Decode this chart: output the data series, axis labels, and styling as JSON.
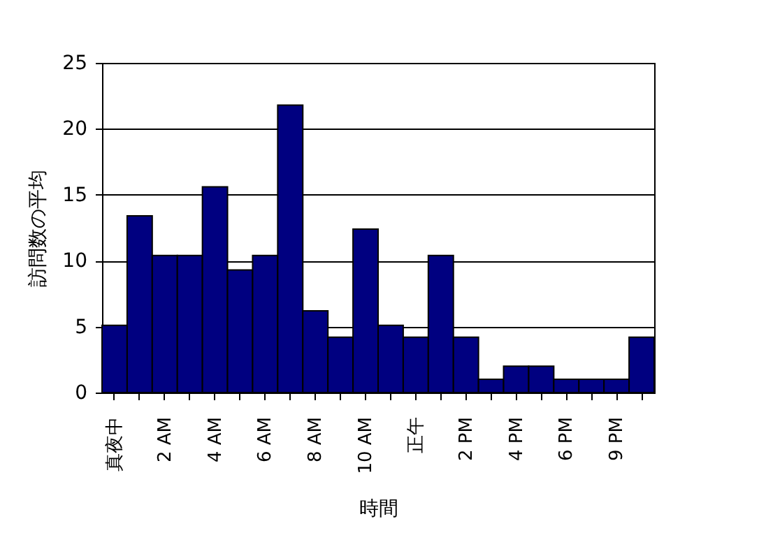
{
  "chart_data": {
    "type": "bar",
    "xlabel": "時間",
    "ylabel": "訪問数の平均",
    "categories": [
      "真夜中",
      null,
      "2 AM",
      null,
      "4 AM",
      null,
      "6 AM",
      null,
      "8 AM",
      null,
      "10 AM",
      null,
      "正午",
      null,
      "2 PM",
      null,
      "4 PM",
      null,
      "6 PM",
      null,
      "9 PM",
      null
    ],
    "values": [
      5.1,
      13.4,
      10.4,
      10.4,
      15.6,
      9.3,
      10.4,
      21.8,
      6.2,
      4.2,
      12.4,
      5.1,
      4.2,
      10.4,
      4.2,
      1.0,
      2.0,
      2.0,
      1.0,
      1.0,
      1.0,
      4.2
    ],
    "color": "#000080",
    "ylim": [
      0,
      25
    ],
    "yticks": [
      0,
      5,
      10,
      15,
      20,
      25
    ],
    "grid": "y"
  }
}
